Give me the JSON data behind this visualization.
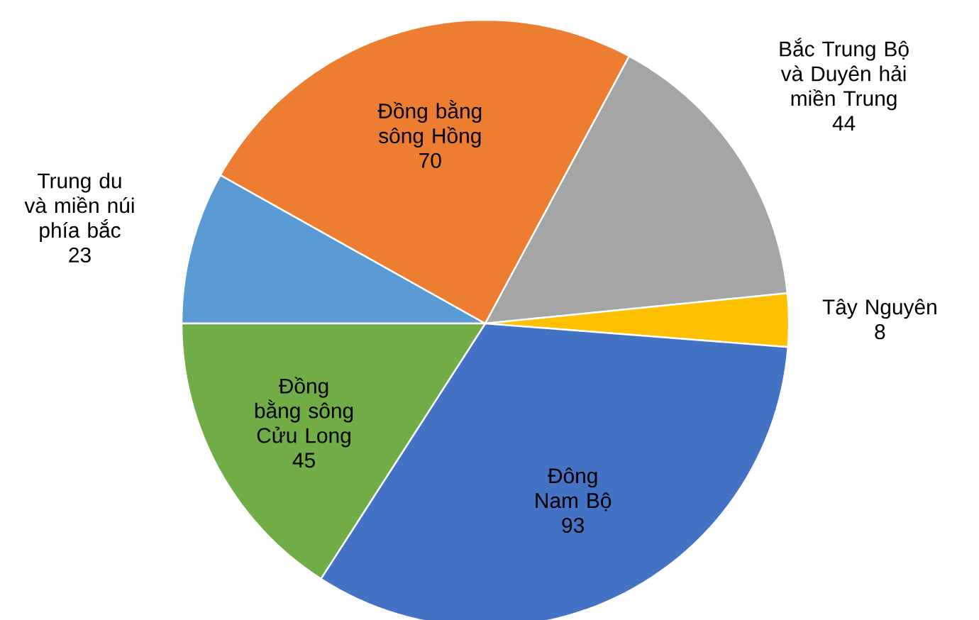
{
  "chart_data": {
    "type": "pie",
    "data_labels": true,
    "categories": [
      "Trung du và miền núi phía bắc",
      "Đồng bằng sông Hồng",
      "Bắc Trung Bộ và Duyên hải miền Trung",
      "Tây Nguyên",
      "Đông Nam Bộ",
      "Đồng bằng sông Cửu Long"
    ],
    "values": [
      23,
      70,
      44,
      8,
      93,
      45
    ],
    "colors": [
      "#5b9bd5",
      "#ed7d31",
      "#a5a5a5",
      "#ffc000",
      "#4472c4",
      "#70ad47"
    ]
  }
}
